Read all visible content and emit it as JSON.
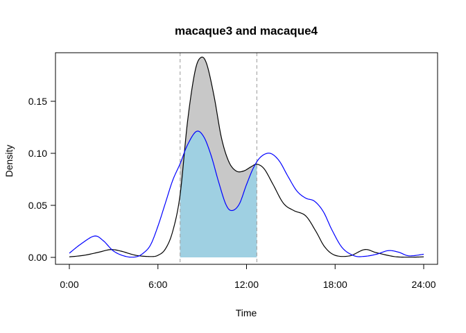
{
  "chart_data": {
    "type": "area",
    "title": "macaque3 and macaque4",
    "xlabel": "Time",
    "ylabel": "Density",
    "xlim": [
      0,
      24
    ],
    "ylim": [
      0,
      0.19
    ],
    "x_ticks": [
      0,
      6,
      12,
      18,
      24
    ],
    "x_tick_labels": [
      "0:00",
      "6:00",
      "12:00",
      "18:00",
      "24:00"
    ],
    "y_ticks": [
      0.0,
      0.05,
      0.1,
      0.15
    ],
    "y_tick_labels": [
      "0.00",
      "0.05",
      "0.10",
      "0.15"
    ],
    "grid": false,
    "reference_lines": [
      7.5,
      12.7
    ],
    "series": [
      {
        "color": "#000000",
        "points": [
          [
            0,
            0.0005
          ],
          [
            1,
            0.002
          ],
          [
            2,
            0.005
          ],
          [
            2.8,
            0.0075
          ],
          [
            3.5,
            0.006
          ],
          [
            4.5,
            0.002
          ],
          [
            5.5,
            0.0008
          ],
          [
            6,
            0.002
          ],
          [
            6.5,
            0.008
          ],
          [
            7,
            0.025
          ],
          [
            7.5,
            0.06
          ],
          [
            8,
            0.13
          ],
          [
            8.5,
            0.178
          ],
          [
            8.9,
            0.192
          ],
          [
            9.3,
            0.186
          ],
          [
            9.8,
            0.155
          ],
          [
            10.3,
            0.115
          ],
          [
            10.8,
            0.092
          ],
          [
            11.3,
            0.083
          ],
          [
            11.8,
            0.083
          ],
          [
            12.3,
            0.087
          ],
          [
            12.7,
            0.0895
          ],
          [
            13.2,
            0.085
          ],
          [
            13.8,
            0.07
          ],
          [
            14.5,
            0.052
          ],
          [
            15.2,
            0.045
          ],
          [
            16,
            0.04
          ],
          [
            16.7,
            0.025
          ],
          [
            17.3,
            0.01
          ],
          [
            18,
            0.002
          ],
          [
            19,
            0.0015
          ],
          [
            20,
            0.0075
          ],
          [
            20.8,
            0.0045
          ],
          [
            22,
            0.0008
          ],
          [
            23,
            0.0002
          ],
          [
            24,
            0.0005
          ]
        ]
      },
      {
        "color": "#0000ff",
        "points": [
          [
            0,
            0.004
          ],
          [
            0.8,
            0.013
          ],
          [
            1.7,
            0.0205
          ],
          [
            2.3,
            0.016
          ],
          [
            3,
            0.006
          ],
          [
            3.8,
            0.001
          ],
          [
            4.5,
            0.0005
          ],
          [
            5,
            0.004
          ],
          [
            5.5,
            0.012
          ],
          [
            6,
            0.03
          ],
          [
            6.5,
            0.052
          ],
          [
            7,
            0.074
          ],
          [
            7.5,
            0.09
          ],
          [
            8,
            0.108
          ],
          [
            8.6,
            0.121
          ],
          [
            9.1,
            0.116
          ],
          [
            9.6,
            0.098
          ],
          [
            10.1,
            0.073
          ],
          [
            10.6,
            0.051
          ],
          [
            11,
            0.045
          ],
          [
            11.5,
            0.051
          ],
          [
            12,
            0.07
          ],
          [
            12.5,
            0.087
          ],
          [
            13,
            0.097
          ],
          [
            13.6,
            0.1
          ],
          [
            14.2,
            0.093
          ],
          [
            14.8,
            0.078
          ],
          [
            15.4,
            0.064
          ],
          [
            16,
            0.057
          ],
          [
            16.6,
            0.054
          ],
          [
            17.2,
            0.044
          ],
          [
            17.8,
            0.026
          ],
          [
            18.5,
            0.009
          ],
          [
            19.3,
            0.0015
          ],
          [
            20,
            0.001
          ],
          [
            20.8,
            0.003
          ],
          [
            21.6,
            0.0065
          ],
          [
            22.3,
            0.005
          ],
          [
            23,
            0.0015
          ],
          [
            24,
            0.003
          ]
        ]
      }
    ]
  }
}
